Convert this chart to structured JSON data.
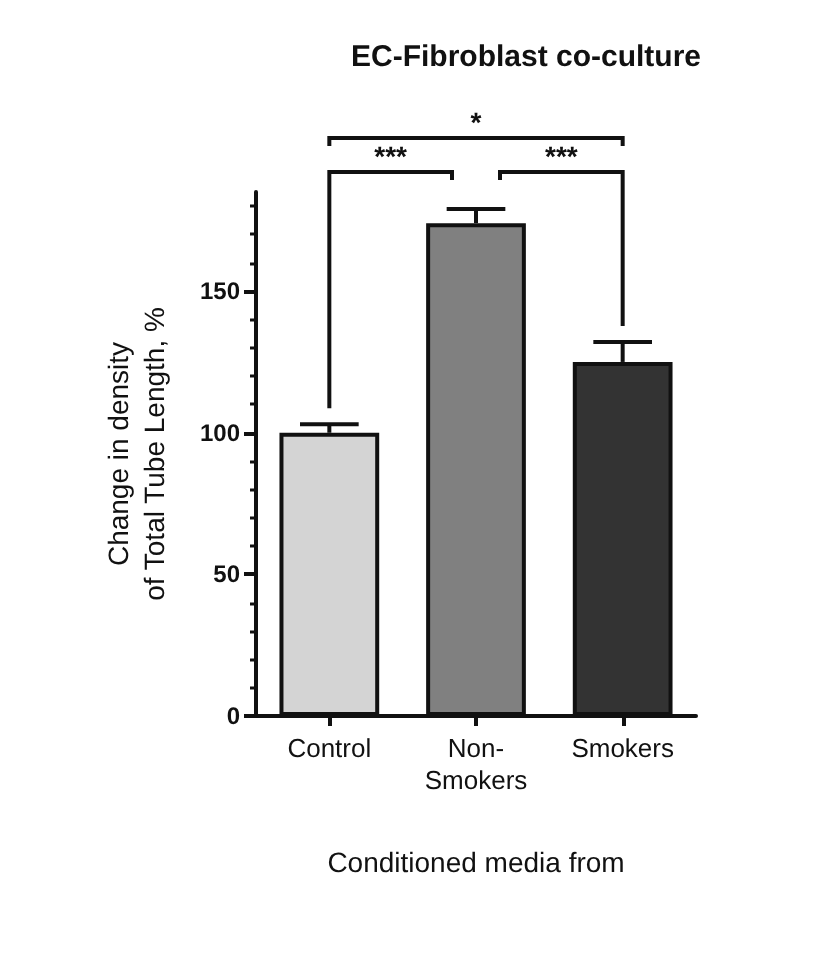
{
  "chart_data": {
    "type": "bar",
    "title": "EC-Fibroblast co-culture",
    "xlabel": "Conditioned media from",
    "ylabel": "Change in density\nof Total Tube Length, %",
    "categories": [
      "Control",
      "Non-\nSmokers",
      "Smokers"
    ],
    "values": [
      100,
      174,
      125
    ],
    "errors": [
      3,
      5,
      7
    ],
    "colors": [
      "#d4d4d4",
      "#808080",
      "#333333"
    ],
    "ylim": [
      0,
      185
    ],
    "yticks": [
      0,
      50,
      100,
      150
    ],
    "grid": false,
    "annotations": [
      "***",
      "***",
      "*"
    ]
  }
}
